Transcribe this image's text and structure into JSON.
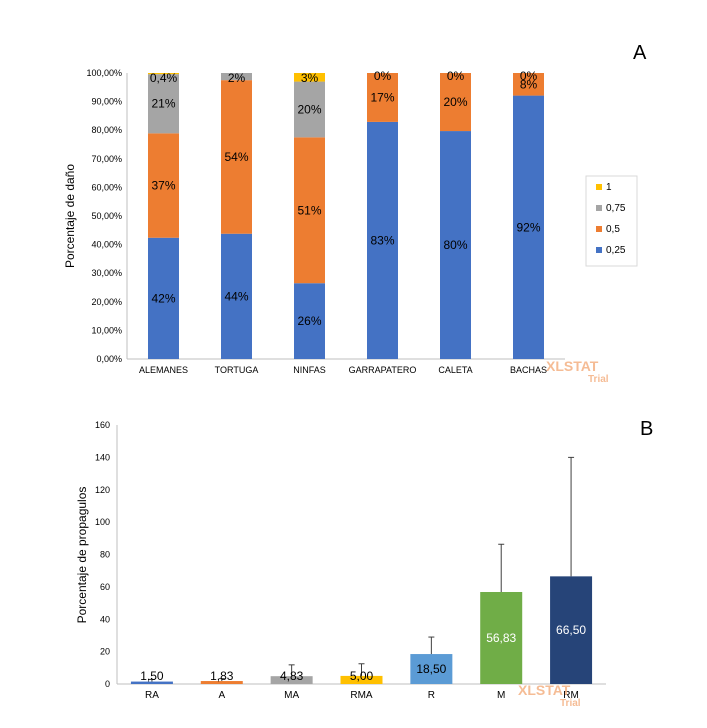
{
  "figure": {
    "panel_a_letter": "A",
    "panel_b_letter": "B",
    "watermark_main": "XLSTAT",
    "watermark_sub": "Trial"
  },
  "chart_data": [
    {
      "type": "bar",
      "stacked": true,
      "ylabel": "Porcentaje de daño",
      "ylim": [
        0,
        100
      ],
      "yticks": [
        "0,00%",
        "10,00%",
        "20,00%",
        "30,00%",
        "40,00%",
        "50,00%",
        "60,00%",
        "70,00%",
        "80,00%",
        "90,00%",
        "100,00%"
      ],
      "categories": [
        "ALEMANES",
        "TORTUGA",
        "NINFAS",
        "GARRAPATERO",
        "CALETA",
        "BACHAS"
      ],
      "legend_position": "right",
      "series": [
        {
          "name": "0,25",
          "color": "#4472C4",
          "values": [
            42.4,
            43.8,
            26.5,
            82.9,
            79.7,
            92.1
          ],
          "labels": [
            "42%",
            "44%",
            "26%",
            "83%",
            "80%",
            "92%"
          ]
        },
        {
          "name": "0,5",
          "color": "#ED7D31",
          "values": [
            36.5,
            53.7,
            51.0,
            17.1,
            20.3,
            7.9
          ],
          "labels": [
            "37%",
            "54%",
            "51%",
            "17%",
            "20%",
            "8%"
          ]
        },
        {
          "name": "0,75",
          "color": "#A5A5A5",
          "values": [
            20.7,
            2.5,
            19.5,
            0,
            0,
            0
          ],
          "labels": [
            "21%",
            "2%",
            "20%",
            "0%",
            "0%",
            "0%"
          ]
        },
        {
          "name": "1",
          "color": "#FFC000",
          "values": [
            0.4,
            0,
            3.0,
            0,
            0,
            0
          ],
          "labels": [
            "0,4%",
            "",
            "3%",
            "",
            "",
            ""
          ]
        }
      ]
    },
    {
      "type": "bar",
      "ylabel": "Porcentaje de propagulos",
      "ylim": [
        0,
        160
      ],
      "yticks": [
        "0",
        "20",
        "40",
        "60",
        "80",
        "100",
        "120",
        "140",
        "160"
      ],
      "categories": [
        "RA",
        "A",
        "MA",
        "RMA",
        "R",
        "M",
        "RM"
      ],
      "values": [
        1.5,
        1.83,
        4.83,
        5.0,
        18.5,
        56.83,
        66.5
      ],
      "value_labels": [
        "1,50",
        "1,83",
        "4,83",
        "5,00",
        "18,50",
        "56,83",
        "66,50"
      ],
      "error_bars": [
        1.3,
        1.5,
        7.0,
        7.5,
        10.5,
        29.5,
        73.5
      ],
      "colors": [
        "#4472C4",
        "#ED7D31",
        "#A5A5A5",
        "#FFC000",
        "#5B9BD5",
        "#70AD47",
        "#264478"
      ],
      "label_colors": [
        "#000000",
        "#000000",
        "#000000",
        "#000000",
        "#000000",
        "#ffffff",
        "#ffffff"
      ]
    }
  ]
}
